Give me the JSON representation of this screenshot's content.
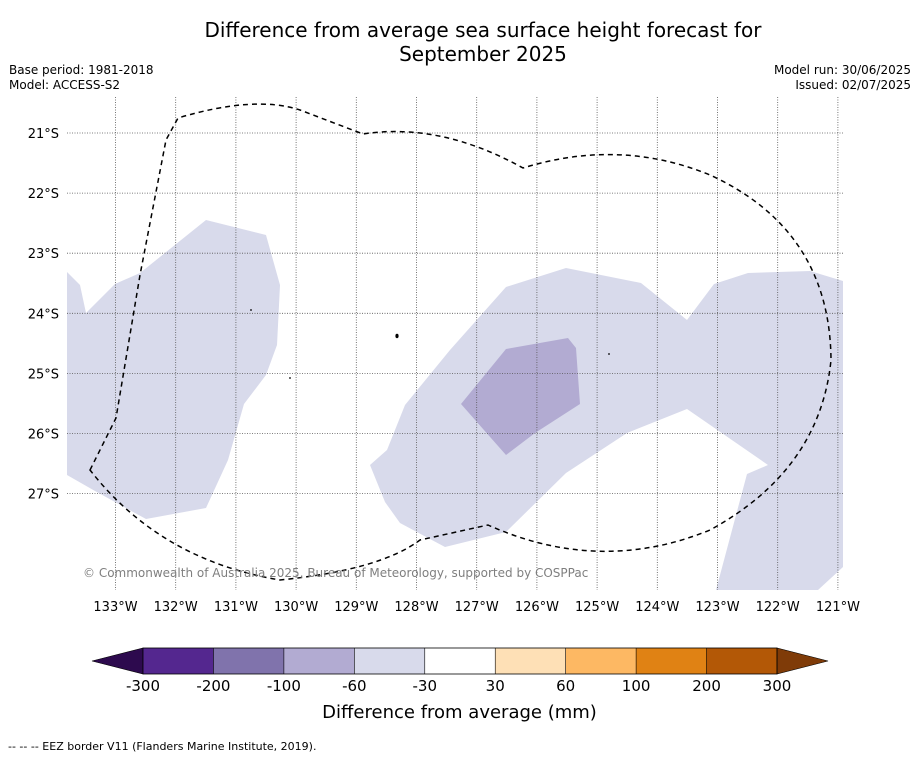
{
  "title_line1": "Difference from average sea surface height forecast for",
  "title_line2": "September 2025",
  "meta": {
    "base_period": "Base period: 1981-2018",
    "model": "Model: ACCESS-S2",
    "model_run": "Model run: 30/06/2025",
    "issued": "Issued: 02/07/2025"
  },
  "map": {
    "lat_labels": [
      "21°S",
      "22°S",
      "23°S",
      "24°S",
      "25°S",
      "26°S",
      "27°S"
    ],
    "lon_labels": [
      "133°W",
      "132°W",
      "131°W",
      "130°W",
      "129°W",
      "128°W",
      "127°W",
      "126°W",
      "125°W",
      "124°W",
      "123°W",
      "122°W",
      "121°W"
    ],
    "copyright": "© Commonwealth of Australia 2025, Bureau of Meteorology, supported by COSPPac",
    "dominant_anomaly_class": "-60 to -30",
    "strongest_anomaly_class": "-100 to -60",
    "overlay": "EEZ border (dashed)"
  },
  "colorbar": {
    "ticks": [
      "-300",
      "-200",
      "-100",
      "-60",
      "-30",
      "30",
      "60",
      "100",
      "200",
      "300"
    ],
    "colors": [
      "#2d0a4e",
      "#54278f",
      "#8073ac",
      "#b2abd2",
      "#d8daeb",
      "#ffffff",
      "#fee0b6",
      "#fdb863",
      "#e08214",
      "#b35806",
      "#7f3b08"
    ],
    "label": "Difference from average (mm)"
  },
  "footnote": "--  --  -- EEZ border V11 (Flanders Marine Institute, 2019)."
}
